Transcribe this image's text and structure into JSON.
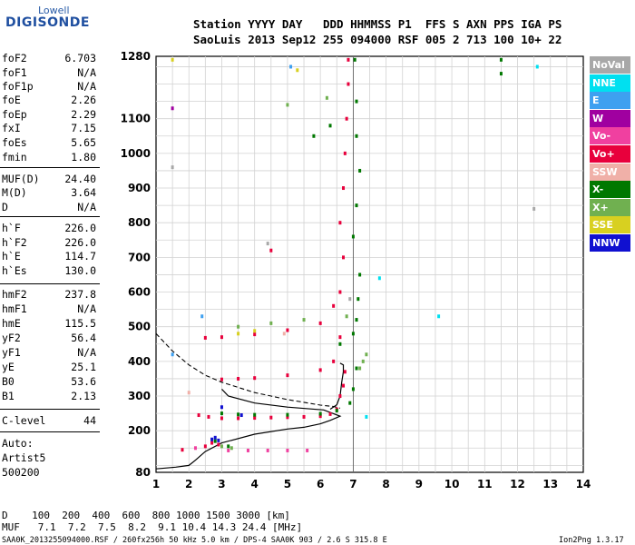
{
  "logo": {
    "line1": "Lowell",
    "line2": "DIGISONDE"
  },
  "header": {
    "row1": "Station YYYY DAY   DDD HHMMSS P1  FFS S AXN PPS IGA PS",
    "row2": "SaoLuis 2013 Sep12 255 094000 RSF 005 2 713 100 10+ 22"
  },
  "params": [
    {
      "key": "foF2",
      "value": "6.703"
    },
    {
      "key": "foF1",
      "value": "N/A"
    },
    {
      "key": "foF1p",
      "value": "N/A"
    },
    {
      "key": "foE",
      "value": "2.26"
    },
    {
      "key": "foEp",
      "value": "2.29"
    },
    {
      "key": "fxI",
      "value": "7.15"
    },
    {
      "key": "foEs",
      "value": "5.65"
    },
    {
      "key": "fmin",
      "value": "1.80"
    },
    {
      "key": "MUF(D)",
      "value": "24.40"
    },
    {
      "key": "M(D)",
      "value": "3.64"
    },
    {
      "key": "D",
      "value": "N/A"
    },
    {
      "key": "h`F",
      "value": "226.0"
    },
    {
      "key": "h`F2",
      "value": "226.0"
    },
    {
      "key": "h`E",
      "value": "114.7"
    },
    {
      "key": "h`Es",
      "value": "130.0"
    },
    {
      "key": "hmF2",
      "value": "237.8"
    },
    {
      "key": "hmF1",
      "value": "N/A"
    },
    {
      "key": "hmE",
      "value": "115.5"
    },
    {
      "key": "yF2",
      "value": "56.4"
    },
    {
      "key": "yF1",
      "value": "N/A"
    },
    {
      "key": "yE",
      "value": "25.1"
    },
    {
      "key": "B0",
      "value": "53.6"
    },
    {
      "key": "B1",
      "value": "2.13"
    },
    {
      "key": "C-level",
      "value": "44"
    }
  ],
  "auto": {
    "line1": "Auto:",
    "line2": "Artist5",
    "line3": "500200"
  },
  "legend": [
    {
      "label": "NoVal",
      "color": "#a8a8a8"
    },
    {
      "label": "NNE",
      "color": "#00e0f0"
    },
    {
      "label": "E",
      "color": "#3ea0f0"
    },
    {
      "label": "W",
      "color": "#a000a0"
    },
    {
      "label": "Vo-",
      "color": "#f040a0"
    },
    {
      "label": "Vo+",
      "color": "#e8003c"
    },
    {
      "label": "SSW",
      "color": "#f0b0a8"
    },
    {
      "label": "X-",
      "color": "#007800"
    },
    {
      "label": "X+",
      "color": "#70b050"
    },
    {
      "label": "SSE",
      "color": "#d8d020"
    },
    {
      "label": "NNW",
      "color": "#1010d0"
    }
  ],
  "footer": {
    "d_row": "D    100  200  400  600  800 1000 1500 3000 [km]",
    "muf_row": "MUF   7.1  7.2  7.5  8.2  9.1 10.4 14.3 24.4 [MHz]",
    "info": "SAA0K_2013255094000.RSF / 260fx256h 50 kHz 5.0 km / DPS-4 SAA0K 903 / 2.6 S 315.8 E",
    "version": "Ion2Png 1.3.17"
  },
  "chart_data": {
    "type": "scatter",
    "x_ticks": [
      1,
      2,
      3,
      4,
      5,
      6,
      7,
      8,
      9,
      10,
      11,
      12,
      13,
      14
    ],
    "y_ticks": [
      80,
      200,
      300,
      400,
      500,
      600,
      700,
      800,
      900,
      1000,
      1100,
      1280
    ],
    "xlim": [
      1,
      14
    ],
    "ylim": [
      80,
      1280
    ],
    "grid": true,
    "legend_position": "right",
    "series": [
      {
        "name": "Vo+",
        "color": "#e8003c",
        "points": [
          [
            2.3,
            245
          ],
          [
            2.6,
            240
          ],
          [
            3,
            236
          ],
          [
            3.5,
            236
          ],
          [
            4,
            237
          ],
          [
            4.5,
            238
          ],
          [
            5,
            239
          ],
          [
            5.5,
            240
          ],
          [
            6,
            242
          ],
          [
            6.3,
            248
          ],
          [
            6.5,
            262
          ],
          [
            6.6,
            300
          ],
          [
            6.7,
            330
          ],
          [
            6.75,
            370
          ],
          [
            3,
            348
          ],
          [
            3.5,
            350
          ],
          [
            4,
            352
          ],
          [
            5,
            360
          ],
          [
            6,
            375
          ],
          [
            6.4,
            400
          ],
          [
            6.6,
            470
          ],
          [
            2.5,
            468
          ],
          [
            3,
            470
          ],
          [
            4,
            478
          ],
          [
            5,
            490
          ],
          [
            6,
            510
          ],
          [
            6.4,
            560
          ],
          [
            6.6,
            600
          ],
          [
            6.7,
            700
          ],
          [
            4.5,
            720
          ],
          [
            6.6,
            800
          ],
          [
            6.7,
            900
          ],
          [
            6.75,
            1000
          ],
          [
            6.8,
            1100
          ],
          [
            6.85,
            1200
          ],
          [
            6.85,
            1270
          ],
          [
            2.5,
            155
          ],
          [
            2.7,
            165
          ],
          [
            2.9,
            160
          ],
          [
            1.8,
            145
          ]
        ]
      },
      {
        "name": "X-",
        "color": "#007800",
        "points": [
          [
            3,
            250
          ],
          [
            3.5,
            247
          ],
          [
            4,
            246
          ],
          [
            5,
            246
          ],
          [
            6,
            249
          ],
          [
            6.5,
            258
          ],
          [
            6.9,
            280
          ],
          [
            7,
            320
          ],
          [
            7.1,
            380
          ],
          [
            6.6,
            450
          ],
          [
            7,
            480
          ],
          [
            7.1,
            520
          ],
          [
            7.15,
            580
          ],
          [
            7.2,
            650
          ],
          [
            7,
            760
          ],
          [
            7.1,
            850
          ],
          [
            7.2,
            950
          ],
          [
            7.1,
            1050
          ],
          [
            7.1,
            1150
          ],
          [
            7.05,
            1270
          ],
          [
            5.8,
            1050
          ],
          [
            6.3,
            1080
          ],
          [
            2.8,
            170
          ],
          [
            3.2,
            155
          ],
          [
            11.5,
            1270
          ],
          [
            11.5,
            1230
          ]
        ]
      },
      {
        "name": "X+",
        "color": "#70b050",
        "points": [
          [
            7.2,
            380
          ],
          [
            7.3,
            400
          ],
          [
            7.4,
            420
          ],
          [
            5,
            1140
          ],
          [
            6.2,
            1160
          ],
          [
            3.5,
            500
          ],
          [
            4.5,
            510
          ],
          [
            5.5,
            520
          ],
          [
            6.8,
            530
          ],
          [
            3,
            155
          ],
          [
            3.3,
            150
          ]
        ]
      },
      {
        "name": "Vo-",
        "color": "#f040a0",
        "points": [
          [
            3.2,
            143
          ],
          [
            3.8,
            143
          ],
          [
            4.4,
            143
          ],
          [
            5,
            143
          ],
          [
            5.6,
            143
          ],
          [
            2.2,
            150
          ]
        ]
      },
      {
        "name": "NNW",
        "color": "#1010d0",
        "points": [
          [
            2.7,
            175
          ],
          [
            2.8,
            180
          ],
          [
            2.9,
            172
          ],
          [
            3,
            268
          ],
          [
            3.6,
            245
          ]
        ]
      },
      {
        "name": "SSE",
        "color": "#d8d020",
        "points": [
          [
            3.5,
            480
          ],
          [
            4,
            488
          ],
          [
            1.5,
            1270
          ],
          [
            5.3,
            1240
          ]
        ]
      },
      {
        "name": "NNE",
        "color": "#00e0f0",
        "points": [
          [
            7.4,
            240
          ],
          [
            12.6,
            1250
          ],
          [
            9.6,
            530
          ],
          [
            7.8,
            640
          ]
        ]
      },
      {
        "name": "E",
        "color": "#3ea0f0",
        "points": [
          [
            1.5,
            420
          ],
          [
            2.4,
            530
          ],
          [
            5.1,
            1250
          ]
        ]
      },
      {
        "name": "W",
        "color": "#a000a0",
        "points": [
          [
            1.5,
            1130
          ]
        ]
      },
      {
        "name": "NoVal",
        "color": "#a8a8a8",
        "points": [
          [
            1.5,
            960
          ],
          [
            4.4,
            740
          ],
          [
            6.9,
            580
          ],
          [
            12.5,
            840
          ]
        ]
      },
      {
        "name": "SSW",
        "color": "#f0b0a8",
        "points": [
          [
            4.9,
            480
          ],
          [
            2,
            310
          ]
        ]
      }
    ],
    "profile_dashed": [
      [
        1,
        480
      ],
      [
        1.5,
        430
      ],
      [
        2,
        390
      ],
      [
        2.5,
        360
      ],
      [
        3,
        340
      ],
      [
        3.5,
        325
      ],
      [
        4,
        310
      ],
      [
        4.5,
        300
      ],
      [
        5,
        290
      ],
      [
        5.5,
        282
      ],
      [
        6,
        274
      ],
      [
        6.4,
        270
      ],
      [
        6.6,
        265
      ]
    ],
    "profile_solid": [
      [
        1,
        90
      ],
      [
        1.6,
        95
      ],
      [
        2,
        100
      ],
      [
        2.2,
        115
      ],
      [
        2.5,
        140
      ],
      [
        3,
        165
      ],
      [
        4,
        190
      ],
      [
        5,
        205
      ],
      [
        5.5,
        210
      ],
      [
        6,
        220
      ],
      [
        6.3,
        230
      ],
      [
        6.6,
        242
      ],
      [
        6.1,
        260
      ],
      [
        5,
        268
      ],
      [
        4,
        280
      ],
      [
        3.2,
        300
      ],
      [
        3,
        320
      ]
    ],
    "trace_line": [
      [
        6.3,
        262
      ],
      [
        6.5,
        275
      ],
      [
        6.6,
        300
      ],
      [
        6.65,
        340
      ],
      [
        6.7,
        370
      ],
      [
        6.7,
        390
      ],
      [
        6.6,
        395
      ]
    ]
  }
}
